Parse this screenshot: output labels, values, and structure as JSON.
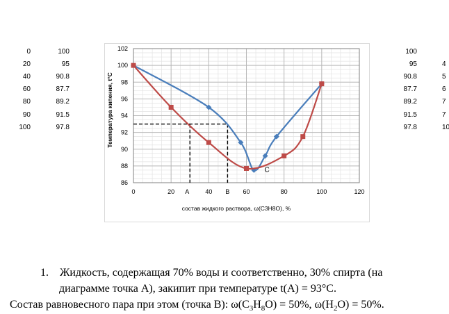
{
  "left_table": {
    "rows": [
      [
        "0",
        "100"
      ],
      [
        "20",
        "95"
      ],
      [
        "40",
        "90.8"
      ],
      [
        "60",
        "87.7"
      ],
      [
        "80",
        "89.2"
      ],
      [
        "90",
        "91.5"
      ],
      [
        "100",
        "97.8"
      ]
    ]
  },
  "right_table": {
    "rows": [
      [
        "100",
        ""
      ],
      [
        "95",
        "4"
      ],
      [
        "90.8",
        "5"
      ],
      [
        "87.7",
        "6"
      ],
      [
        "89.2",
        "7"
      ],
      [
        "91.5",
        "7"
      ],
      [
        "97.8",
        "10"
      ]
    ]
  },
  "chart_data": {
    "type": "line",
    "title": "",
    "xlabel": "состав жидкого раствора, ω(C3H8O), %",
    "ylabel": "Температура кипения, t°C",
    "xlim": [
      0,
      120
    ],
    "ylim": [
      86,
      102
    ],
    "x_ticks": [
      "0",
      "20",
      "40",
      "60",
      "80",
      "100",
      "120"
    ],
    "y_ticks": [
      "86",
      "88",
      "90",
      "92",
      "94",
      "96",
      "98",
      "100",
      "102"
    ],
    "grid": true,
    "series": [
      {
        "color": "#4a7ebb",
        "marker": "diamond",
        "x": [
          0,
          40,
          57,
          64,
          70,
          76,
          100
        ],
        "y": [
          100,
          95,
          90.8,
          87.5,
          89.2,
          91.5,
          97.8
        ]
      },
      {
        "color": "#be4b48",
        "marker": "square",
        "x": [
          0,
          20,
          40,
          60,
          80,
          90,
          100
        ],
        "y": [
          100,
          95,
          90.8,
          87.7,
          89.2,
          91.5,
          97.8
        ]
      }
    ],
    "annotations": [
      {
        "label": "A",
        "x": 30,
        "y": 93
      },
      {
        "label": "B",
        "x": 50,
        "y": 93
      },
      {
        "label": "C",
        "x": 68,
        "y": 87.6
      }
    ]
  },
  "text": {
    "line1_number": "1.",
    "line1": "Жидкость, содержащая 70% воды и соответственно, 30% спирта (на",
    "line2": "диаграмме точка А), закипит при температуре t(A) = 93°C.",
    "line3_a": "Состав равновесного пара при этом (точка В): ω(C",
    "line3_sub1": "3",
    "line3_b": "H",
    "line3_sub2": "8",
    "line3_c": "O) = 50%, ω(H",
    "line3_sub3": "2",
    "line3_d": "O) = 50%."
  }
}
